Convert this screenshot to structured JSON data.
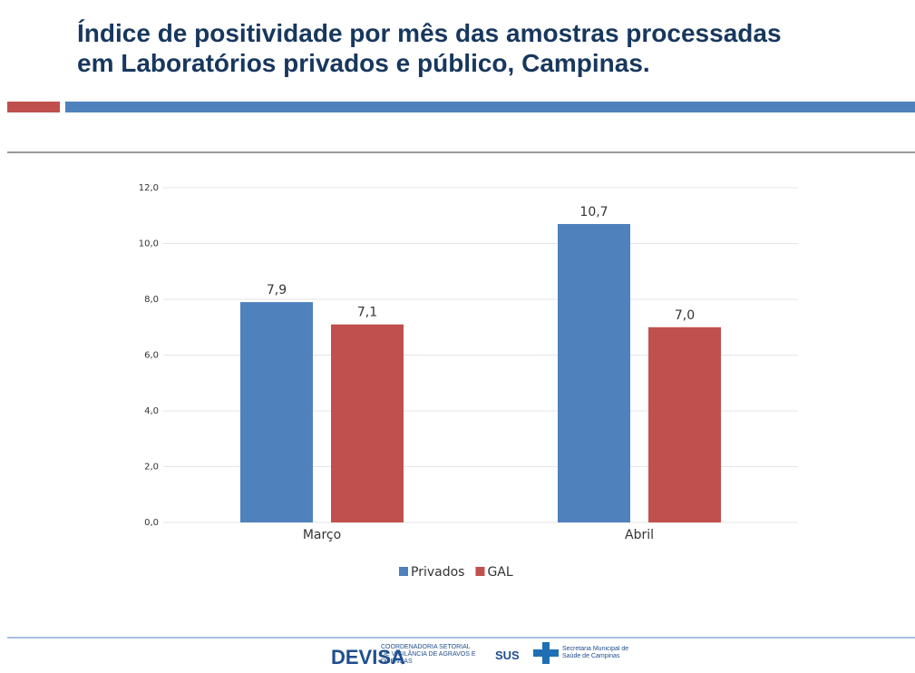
{
  "chart_data": {
    "type": "bar",
    "title": "Índice de positividade por mês das amostras processadas\nem Laboratórios privados e público, Campinas.",
    "categories": [
      "Março",
      "Abril"
    ],
    "series": [
      {
        "name": "Privados",
        "color": "#4f81bd",
        "values": [
          7.9,
          10.7
        ],
        "value_labels": [
          "7,9",
          "10,7"
        ]
      },
      {
        "name": "GAL",
        "color": "#c0504d",
        "values": [
          7.1,
          7.0
        ],
        "value_labels": [
          "7,1",
          "7,0"
        ]
      }
    ],
    "ylim": [
      0,
      12
    ],
    "yticks": [
      {
        "value": 0,
        "label": "0,0"
      },
      {
        "value": 2,
        "label": "2,0"
      },
      {
        "value": 4,
        "label": "4,0"
      },
      {
        "value": 6,
        "label": "6,0"
      },
      {
        "value": 8,
        "label": "8,0"
      },
      {
        "value": 10,
        "label": "10,0"
      },
      {
        "value": 12,
        "label": "12,0"
      }
    ],
    "grid": true,
    "legend": "bottom"
  },
  "footer": {
    "devisa": "DEVISA",
    "devisa_text": "COORDENADORIA SETORIAL DE VIGILÂNCIA DE AGRAVOS E DOENÇAS",
    "sus": "SUS",
    "secretaria": "Secretaria Municipal de Saúde de Campinas"
  }
}
